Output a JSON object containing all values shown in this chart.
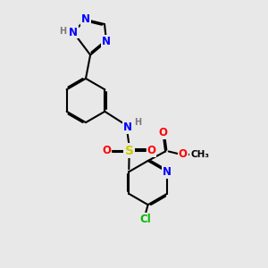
{
  "bg_color": "#e8e8e8",
  "bond_color": "#000000",
  "bond_width": 1.5,
  "atom_colors": {
    "N": "#0000ff",
    "O": "#ff0000",
    "S": "#cccc00",
    "Cl": "#00bb00",
    "H": "#7a7a7a",
    "C": "#000000"
  },
  "fs": 8.5,
  "fs_small": 7.0
}
